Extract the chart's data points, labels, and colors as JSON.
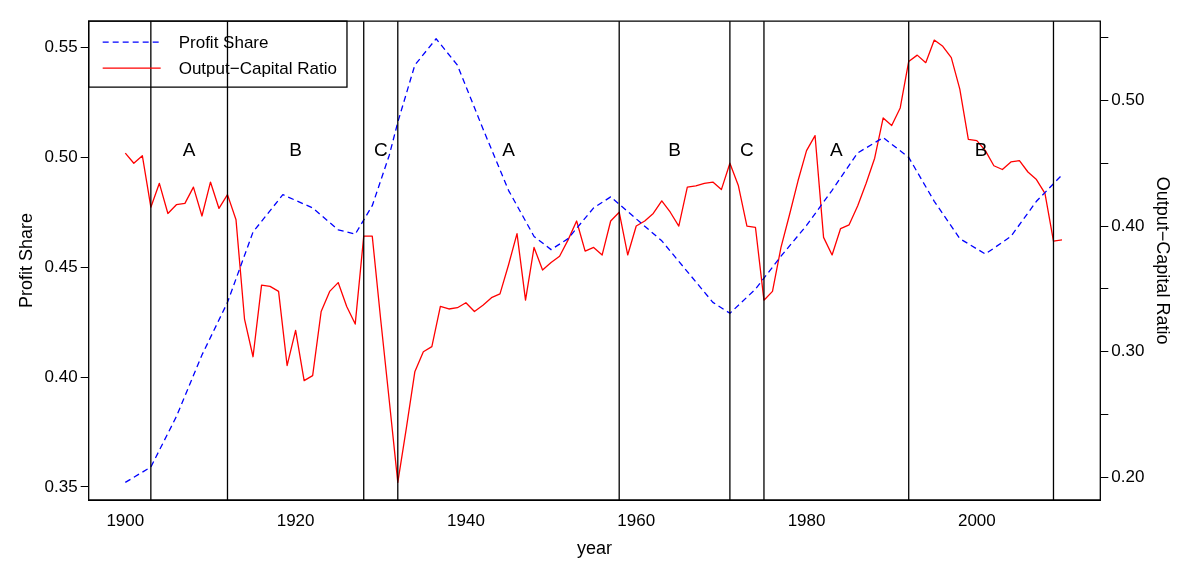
{
  "chart_data": {
    "type": "line",
    "xlabel": "year",
    "ylabel": "Profit Share",
    "y2label": "Output−Capital Ratio",
    "xlim": [
      1895.7,
      2014.5
    ],
    "xticks": [
      1900,
      1920,
      1940,
      1960,
      1980,
      2000
    ],
    "ylim": [
      0.344,
      0.562
    ],
    "yticks": [
      0.35,
      {
        "value": 0.4,
        "label": "0.40"
      },
      0.45,
      {
        "value": 0.5,
        "label": "0.50"
      },
      0.55
    ],
    "y2lim": [
      0.182,
      0.563
    ],
    "y2ticks": [
      {
        "value": 0.2,
        "label": "0.20"
      },
      {
        "value": 0.25,
        "label": null
      },
      {
        "value": 0.3,
        "label": "0.30"
      },
      {
        "value": 0.35,
        "label": null
      },
      {
        "value": 0.4,
        "label": "0.40"
      },
      {
        "value": 0.45,
        "label": null
      },
      {
        "value": 0.5,
        "label": "0.50"
      },
      {
        "value": 0.55,
        "label": null
      }
    ],
    "grid": false,
    "legend": "top left",
    "marker": "none",
    "series": [
      {
        "name": "Profit Share",
        "color": "#0000ff",
        "line_style": "dashed",
        "x": [
          1900,
          1903,
          1906,
          1909,
          1912,
          1915,
          1918.5,
          1922,
          1925,
          1927,
          1929,
          1931,
          1932,
          1934,
          1936.5,
          1939,
          1942,
          1945,
          1948,
          1950,
          1952,
          1955,
          1957,
          1960,
          1963,
          1966,
          1969,
          1971,
          1974,
          1977,
          1980,
          1983,
          1986,
          1989,
          1992,
          1995,
          1998,
          2001,
          2004,
          2007,
          2010
        ],
        "values": [
          0.352,
          0.359,
          0.382,
          0.41,
          0.434,
          0.466,
          0.483,
          0.477,
          0.467,
          0.465,
          0.478,
          0.501,
          0.516,
          0.542,
          0.554,
          0.542,
          0.513,
          0.485,
          0.464,
          0.458,
          0.463,
          0.477,
          0.482,
          0.472,
          0.462,
          0.448,
          0.434,
          0.429,
          0.44,
          0.455,
          0.469,
          0.485,
          0.502,
          0.509,
          0.5,
          0.48,
          0.463,
          0.456,
          0.464,
          0.48,
          0.492
        ]
      },
      {
        "name": "Output−Capital Ratio",
        "color": "#ff0000",
        "line_style": "solid",
        "axis": "y2",
        "x": [
          1900,
          1901,
          1902,
          1903,
          1904,
          1905,
          1906,
          1907,
          1908,
          1909,
          1910,
          1911,
          1912,
          1913,
          1914,
          1915,
          1916,
          1917,
          1918,
          1919,
          1920,
          1921,
          1922,
          1923,
          1924,
          1925,
          1926,
          1927,
          1928,
          1929,
          1930,
          1931,
          1932,
          1933,
          1934,
          1935,
          1936,
          1937,
          1938,
          1939,
          1940,
          1941,
          1942,
          1943,
          1944,
          1945,
          1946,
          1947,
          1948,
          1949,
          1950,
          1951,
          1952,
          1953,
          1954,
          1955,
          1956,
          1957,
          1958,
          1959,
          1960,
          1961,
          1962,
          1963,
          1964,
          1965,
          1966,
          1967,
          1968,
          1969,
          1970,
          1971,
          1972,
          1973,
          1974,
          1975,
          1976,
          1977,
          1978,
          1979,
          1980,
          1981,
          1982,
          1983,
          1984,
          1985,
          1986,
          1987,
          1988,
          1989,
          1990,
          1991,
          1992,
          1993,
          1994,
          1995,
          1996,
          1997,
          1998,
          1999,
          2000,
          2001,
          2002,
          2003,
          2004,
          2005,
          2006,
          2007,
          2008,
          2009,
          2010
        ],
        "values": [
          0.458,
          0.45,
          0.456,
          0.415,
          0.434,
          0.41,
          0.417,
          0.418,
          0.431,
          0.408,
          0.435,
          0.414,
          0.425,
          0.405,
          0.326,
          0.296,
          0.353,
          0.352,
          0.348,
          0.289,
          0.317,
          0.277,
          0.281,
          0.332,
          0.348,
          0.355,
          0.336,
          0.322,
          0.392,
          0.392,
          0.325,
          0.261,
          0.196,
          0.239,
          0.284,
          0.3,
          0.304,
          0.336,
          0.334,
          0.335,
          0.339,
          0.332,
          0.337,
          0.343,
          0.346,
          0.369,
          0.394,
          0.341,
          0.383,
          0.365,
          0.371,
          0.376,
          0.389,
          0.404,
          0.38,
          0.383,
          0.377,
          0.404,
          0.411,
          0.377,
          0.4,
          0.404,
          0.41,
          0.42,
          0.411,
          0.4,
          0.431,
          0.432,
          0.434,
          0.435,
          0.429,
          0.45,
          0.432,
          0.4,
          0.399,
          0.341,
          0.348,
          0.383,
          0.409,
          0.436,
          0.46,
          0.472,
          0.391,
          0.377,
          0.398,
          0.401,
          0.416,
          0.434,
          0.454,
          0.486,
          0.48,
          0.494,
          0.531,
          0.536,
          0.53,
          0.548,
          0.543,
          0.534,
          0.509,
          0.469,
          0.468,
          0.46,
          0.448,
          0.445,
          0.451,
          0.452,
          0.443,
          0.437,
          0.426,
          0.388,
          0.389
        ]
      }
    ],
    "ref_lines": [
      {
        "axis": "x",
        "value": 1903,
        "color": "#000000"
      },
      {
        "axis": "x",
        "value": 1912,
        "color": "#000000"
      },
      {
        "axis": "x",
        "value": 1928,
        "color": "#000000"
      },
      {
        "axis": "x",
        "value": 1932,
        "color": "#000000"
      },
      {
        "axis": "x",
        "value": 1958,
        "color": "#000000"
      },
      {
        "axis": "x",
        "value": 1971,
        "color": "#000000"
      },
      {
        "axis": "x",
        "value": 1975,
        "color": "#000000"
      },
      {
        "axis": "x",
        "value": 1992,
        "color": "#000000"
      },
      {
        "axis": "x",
        "value": 2009,
        "color": "#000000"
      }
    ],
    "annotations": [
      "A",
      "B",
      "C",
      "A",
      "B",
      "C",
      "A",
      "B"
    ]
  }
}
